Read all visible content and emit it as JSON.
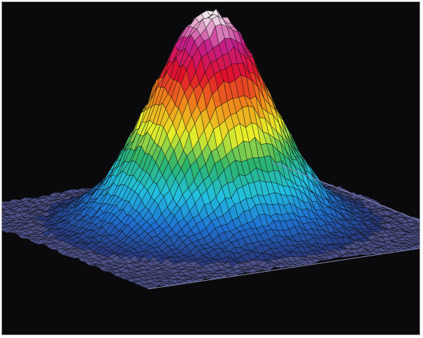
{
  "chart_data": {
    "type": "surface",
    "title": "",
    "xlabel": "",
    "ylabel": "",
    "zlabel": "",
    "axes_visible": false,
    "grid": "wireframe",
    "surface_shape": "single Gaussian-like peak centered on a flat base plane",
    "z_range": [
      0,
      1
    ],
    "x_range": [
      -1,
      1
    ],
    "y_range": [
      -1,
      1
    ],
    "peak": {
      "x": 0,
      "y": 0,
      "z": 1.0
    },
    "peak_width_sigma": 0.32,
    "noise_amplitude": 0.03,
    "color_scale": [
      "#2a2f6e",
      "#1f6fd0",
      "#22c0e0",
      "#2bb36a",
      "#e7ee2a",
      "#f08a1a",
      "#e0102a",
      "#c41e8a",
      "#f4f4f4"
    ],
    "background_color": "#0a0a0c",
    "base_color": "#4a4f86",
    "mesh_line_color": "#111111"
  }
}
